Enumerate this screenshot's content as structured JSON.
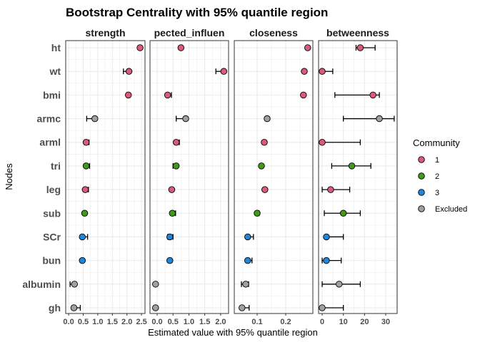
{
  "chart_data": {
    "type": "scatter",
    "title": "Bootstrap Centrality with 95% quantile region",
    "xlabel": "Estimated value with 95% quantile region",
    "ylabel": "Nodes",
    "nodes": [
      "ht",
      "wt",
      "bmi",
      "armc",
      "arml",
      "tri",
      "leg",
      "sub",
      "SCr",
      "bun",
      "albumin",
      "gh"
    ],
    "community": [
      "1",
      "1",
      "1",
      "Excluded",
      "1",
      "2",
      "1",
      "2",
      "3",
      "3",
      "Excluded",
      "Excluded"
    ],
    "legend": {
      "title": "Community",
      "placement": "right",
      "entries": [
        {
          "label": "1",
          "color": "#DA5A7B"
        },
        {
          "label": "2",
          "color": "#3F9A17"
        },
        {
          "label": "3",
          "color": "#1E87DB"
        },
        {
          "label": "Excluded",
          "color": "#A0A0A0"
        }
      ]
    },
    "grid": true,
    "panels": [
      {
        "name": "strength",
        "xlim": [
          -0.1,
          2.62
        ],
        "ticks": [
          0,
          0.5,
          1,
          1.5,
          2,
          2.5
        ],
        "tick_labels": [
          "0.0",
          "0.5",
          "1.0",
          "1.5",
          "2.0",
          "2.5"
        ],
        "values": [
          2.45,
          2.07,
          2.05,
          0.9,
          0.6,
          0.6,
          0.57,
          0.55,
          0.47,
          0.47,
          0.2,
          0.18
        ],
        "lower": [
          2.45,
          1.88,
          2.0,
          0.62,
          0.55,
          0.6,
          0.55,
          0.55,
          0.47,
          0.47,
          0.05,
          0.18
        ],
        "upper": [
          2.45,
          2.07,
          2.1,
          0.9,
          0.7,
          0.72,
          0.68,
          0.55,
          0.65,
          0.47,
          0.25,
          0.4
        ]
      },
      {
        "name": "pected_influen",
        "xlim": [
          -0.225,
          2.25
        ],
        "ticks": [
          0,
          0.5,
          1,
          1.5,
          2
        ],
        "tick_labels": [
          "0.0",
          "0.5",
          "1.0",
          "1.5",
          "2.0"
        ],
        "values": [
          0.75,
          2.1,
          0.33,
          0.9,
          0.6,
          0.6,
          0.46,
          0.48,
          0.4,
          0.4,
          -0.05,
          -0.05
        ],
        "lower": [
          0.75,
          1.85,
          0.33,
          0.6,
          0.6,
          0.5,
          0.46,
          0.48,
          0.33,
          0.4,
          -0.08,
          -0.05
        ],
        "upper": [
          0.75,
          2.1,
          0.45,
          0.9,
          0.7,
          0.6,
          0.46,
          0.58,
          0.5,
          0.45,
          -0.05,
          -0.05
        ]
      },
      {
        "name": "closeness",
        "xlim": [
          0.02,
          0.295
        ],
        "ticks": [
          0.1,
          0.2
        ],
        "tick_labels": [
          "0.1",
          "0.2"
        ],
        "values": [
          0.277,
          0.265,
          0.262,
          0.135,
          0.125,
          0.115,
          0.127,
          0.1,
          0.067,
          0.067,
          0.06,
          0.047
        ],
        "lower": [
          0.277,
          0.265,
          0.262,
          0.13,
          0.125,
          0.11,
          0.127,
          0.1,
          0.067,
          0.067,
          0.045,
          0.047
        ],
        "upper": [
          0.277,
          0.265,
          0.262,
          0.135,
          0.13,
          0.115,
          0.127,
          0.107,
          0.087,
          0.082,
          0.07,
          0.072
        ]
      },
      {
        "name": "betweenness",
        "xlim": [
          -1.7,
          35.4
        ],
        "ticks": [
          0,
          10,
          20,
          30
        ],
        "tick_labels": [
          "0",
          "10",
          "20",
          "30"
        ],
        "values": [
          18,
          0,
          24,
          27,
          0,
          14,
          4,
          10,
          2,
          2,
          8,
          0
        ],
        "lower": [
          16,
          0,
          6,
          10,
          0,
          4.5,
          0,
          1,
          2,
          0,
          0,
          0
        ],
        "upper": [
          25,
          5,
          27,
          34,
          18,
          23,
          13,
          18,
          10,
          9,
          18,
          10
        ]
      }
    ]
  }
}
